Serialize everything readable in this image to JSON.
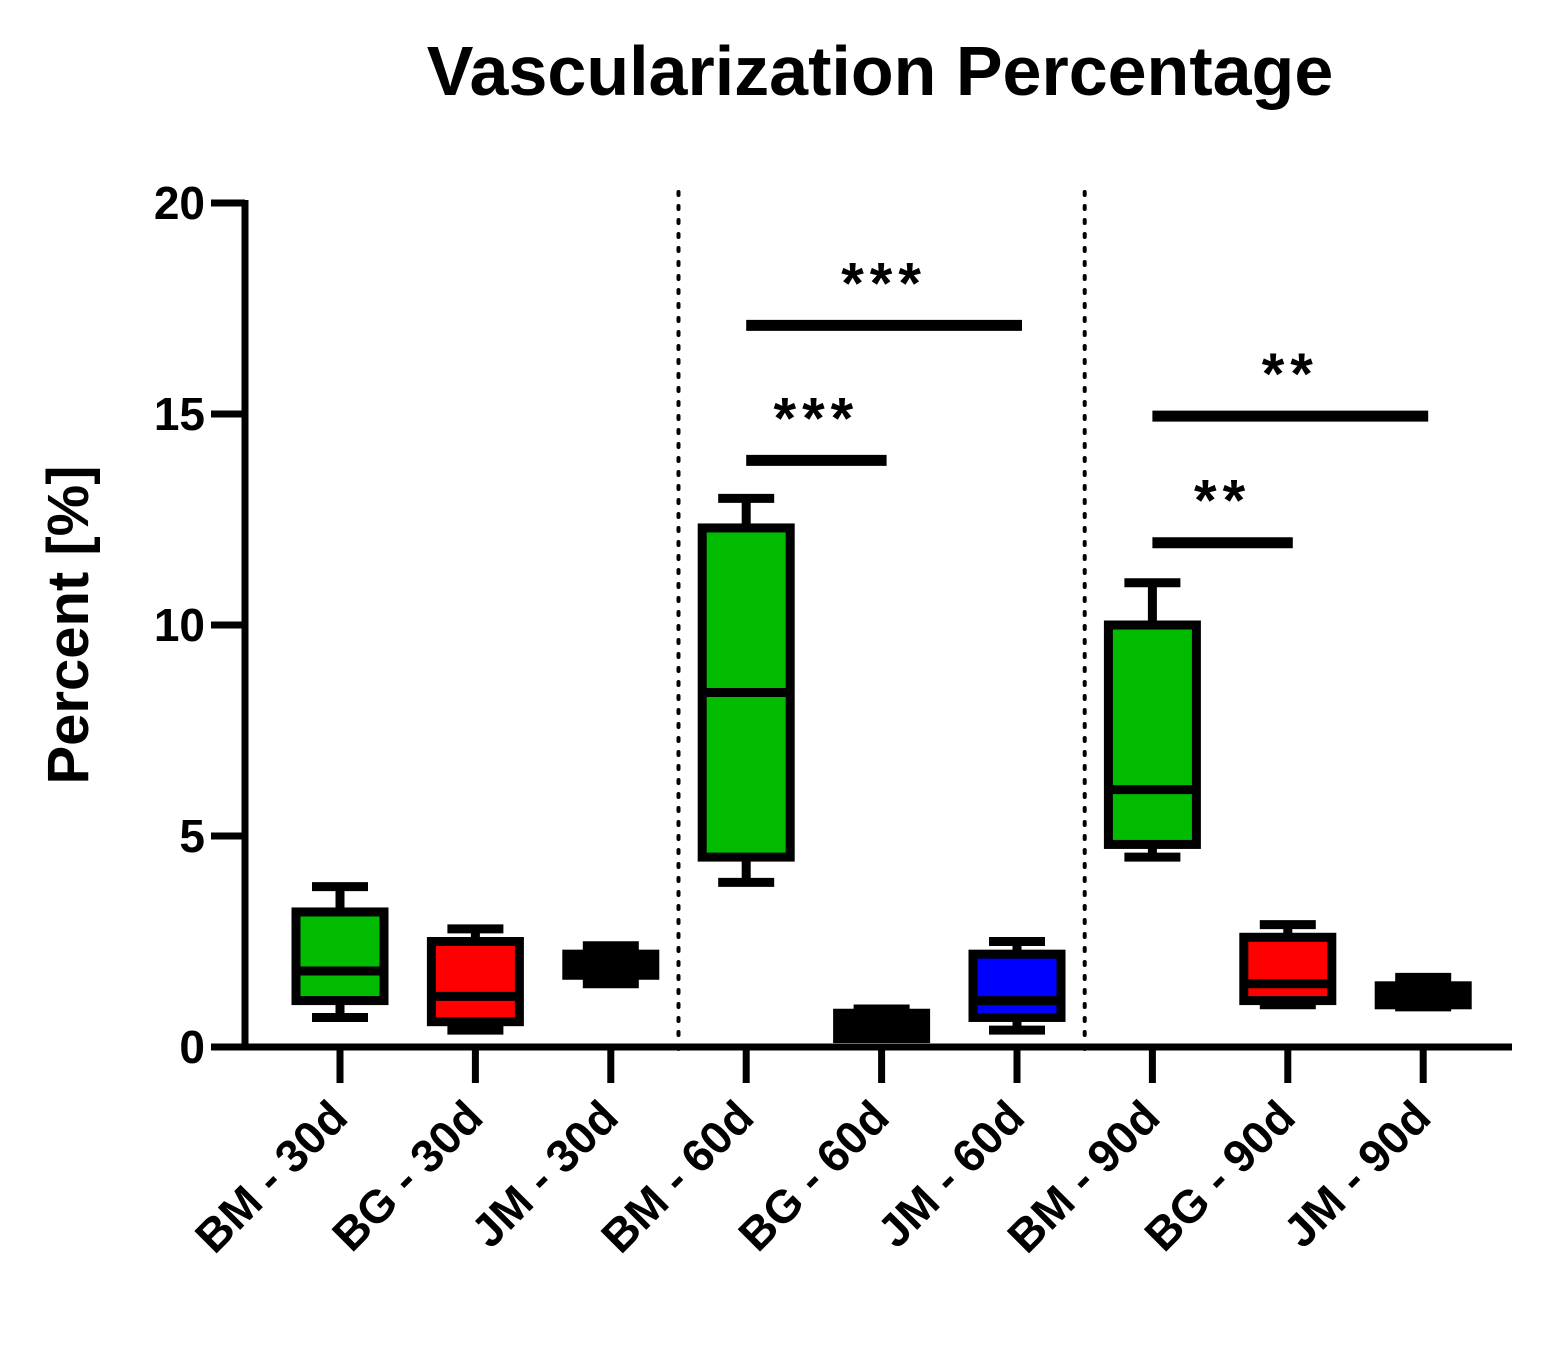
{
  "chart_data": {
    "type": "box",
    "title": "Vascularization Percentage",
    "xlabel": "",
    "ylabel": "Percent [%]",
    "ylim": [
      0,
      20
    ],
    "yticks": [
      "0",
      "5",
      "10",
      "15",
      "20"
    ],
    "categories": [
      "BM - 30d",
      "BG - 30d",
      "JM - 30d",
      "BM - 60d",
      "BG - 60d",
      "JM - 60d",
      "BM - 90d",
      "BG - 90d",
      "JM - 90d"
    ],
    "colors": {
      "BM": "#00bb00",
      "BG": "#ff0000",
      "JM": "#000000",
      "JM60": "#0000ff",
      "outline": "#000000"
    },
    "boxes": [
      {
        "group": "BM - 30d",
        "color": "#00bb00",
        "min": 0.7,
        "q1": 1.1,
        "median": 1.8,
        "q3": 3.2,
        "max": 3.8
      },
      {
        "group": "BG - 30d",
        "color": "#ff0000",
        "min": 0.4,
        "q1": 0.6,
        "median": 1.2,
        "q3": 2.5,
        "max": 2.8
      },
      {
        "group": "JM - 30d",
        "color": "#000000",
        "min": 1.5,
        "q1": 1.7,
        "median": 1.95,
        "q3": 2.2,
        "max": 2.4
      },
      {
        "group": "BM - 60d",
        "color": "#00bb00",
        "min": 3.9,
        "q1": 4.5,
        "median": 8.4,
        "q3": 12.3,
        "max": 13.0
      },
      {
        "group": "BG - 60d",
        "color": "#000000",
        "min": 0.2,
        "q1": 0.2,
        "median": 0.5,
        "q3": 0.8,
        "max": 0.9
      },
      {
        "group": "JM - 60d",
        "color": "#0000ff",
        "min": 0.4,
        "q1": 0.7,
        "median": 1.1,
        "q3": 2.2,
        "max": 2.5
      },
      {
        "group": "BM - 90d",
        "color": "#00bb00",
        "min": 4.5,
        "q1": 4.8,
        "median": 6.1,
        "q3": 10.0,
        "max": 11.0
      },
      {
        "group": "BG - 90d",
        "color": "#ff0000",
        "min": 1.0,
        "q1": 1.1,
        "median": 1.5,
        "q3": 2.6,
        "max": 2.9
      },
      {
        "group": "JM - 90d",
        "color": "#000000",
        "min": 0.95,
        "q1": 1.0,
        "median": 1.2,
        "q3": 1.45,
        "max": 1.65
      }
    ],
    "separators_after": [
      3,
      6
    ],
    "significance": [
      {
        "from": 3,
        "to": 4,
        "y": 13.9,
        "label": "***"
      },
      {
        "from": 3,
        "to": 5,
        "y": 17.1,
        "label": "***"
      },
      {
        "from": 6,
        "to": 7,
        "y": 11.95,
        "label": "**"
      },
      {
        "from": 6,
        "to": 8,
        "y": 14.95,
        "label": "**"
      }
    ]
  }
}
